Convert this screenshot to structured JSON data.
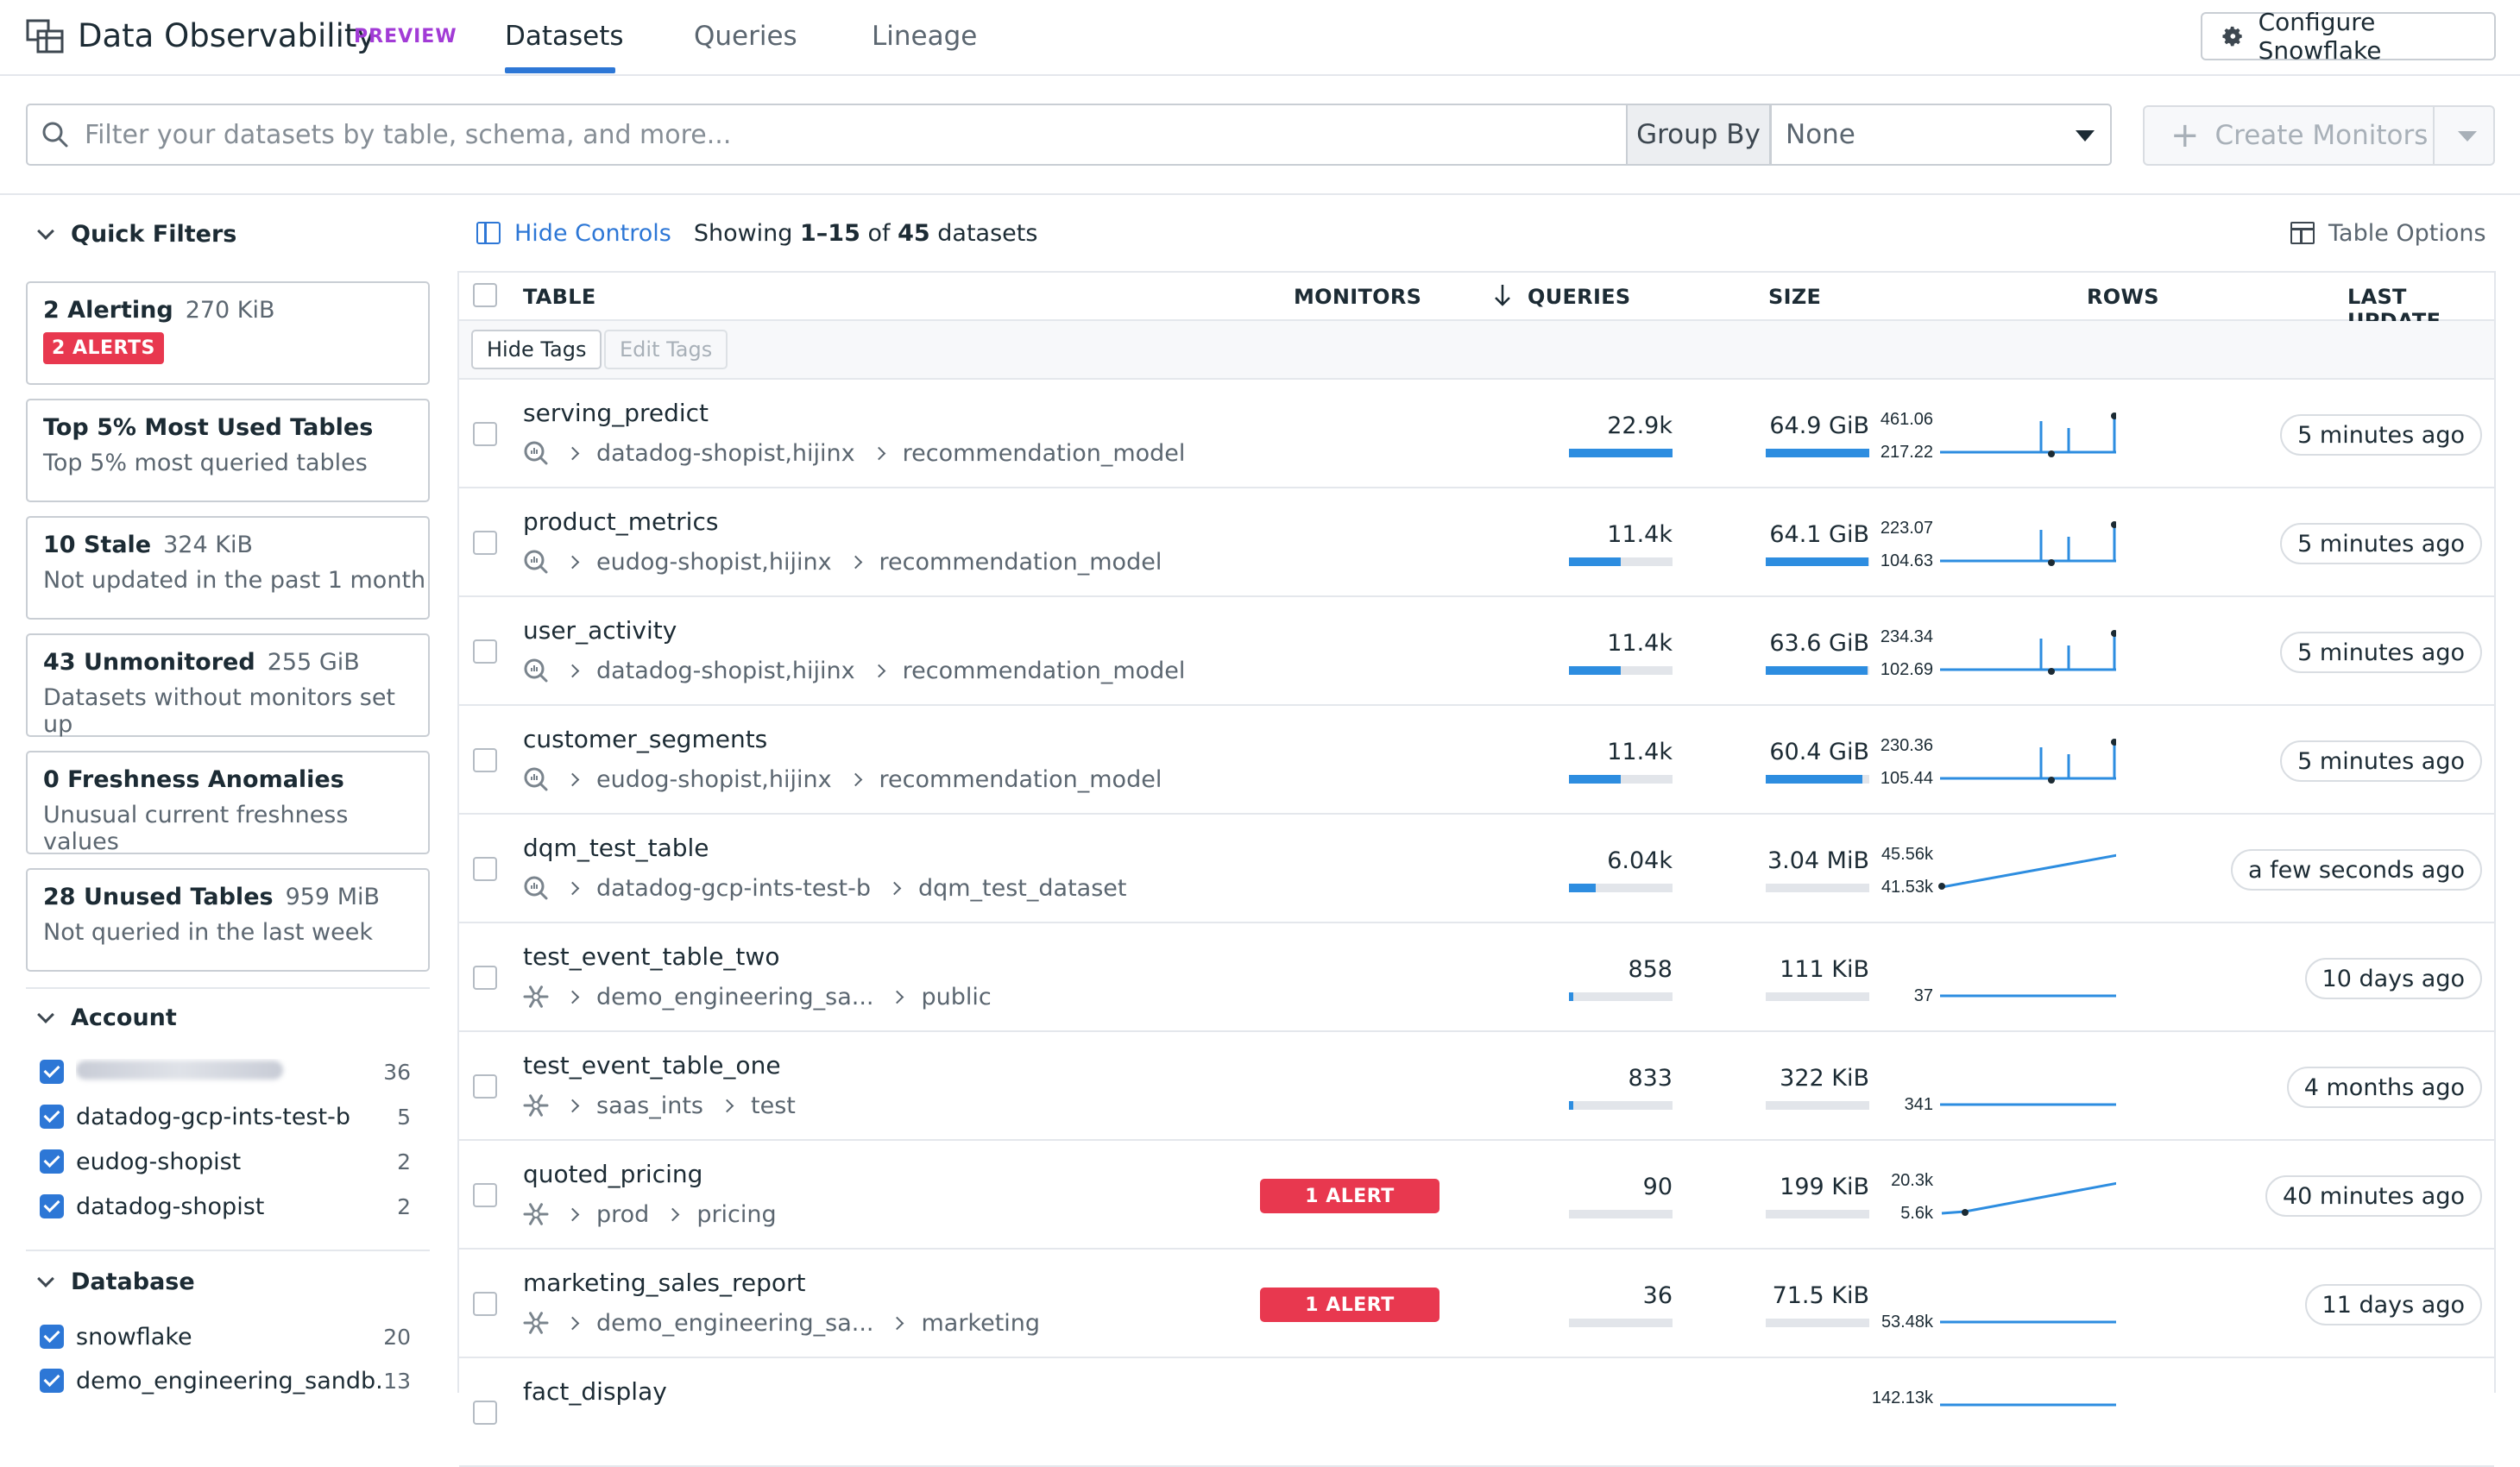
{
  "app": {
    "title": "Data Observability",
    "badge": "PREVIEW",
    "tabs": [
      {
        "label": "Datasets",
        "active": true
      },
      {
        "label": "Queries",
        "active": false
      },
      {
        "label": "Lineage",
        "active": false
      }
    ],
    "configure_label": "Configure Snowflake"
  },
  "search": {
    "placeholder": "Filter your datasets by table, schema, and more...",
    "group_by_label": "Group By",
    "group_by_value": "None",
    "create_label": "Create Monitors"
  },
  "sidebar": {
    "quick_filters_label": "Quick Filters",
    "cards": [
      {
        "title": "2 Alerting",
        "size": "270 KiB",
        "badge": "2 ALERTS",
        "subtitle": ""
      },
      {
        "title": "Top 5% Most Used Tables",
        "size": "",
        "badge": "",
        "subtitle": "Top 5% most queried tables"
      },
      {
        "title": "10 Stale",
        "size": "324 KiB",
        "badge": "",
        "subtitle": "Not updated in the past 1 month"
      },
      {
        "title": "43 Unmonitored",
        "size": "255 GiB",
        "badge": "",
        "subtitle": "Datasets without monitors set up"
      },
      {
        "title": "0 Freshness Anomalies",
        "size": "",
        "badge": "",
        "subtitle": "Unusual current freshness values"
      },
      {
        "title": "28 Unused Tables",
        "size": "959 MiB",
        "badge": "",
        "subtitle": "Not queried in the last week"
      }
    ],
    "account_label": "Account",
    "accounts": [
      {
        "name": "",
        "redacted": true,
        "count": "36"
      },
      {
        "name": "datadog-gcp-ints-test-b",
        "redacted": false,
        "count": "5"
      },
      {
        "name": "eudog-shopist",
        "redacted": false,
        "count": "2"
      },
      {
        "name": "datadog-shopist",
        "redacted": false,
        "count": "2"
      }
    ],
    "database_label": "Database",
    "databases": [
      {
        "name": "snowflake",
        "count": "20"
      },
      {
        "name": "demo_engineering_sandb...",
        "count": "13"
      }
    ]
  },
  "controls": {
    "hide_label": "Hide Controls",
    "showing_prefix": "Showing",
    "showing_range": "1–15",
    "showing_of": "of",
    "showing_total": "45",
    "showing_suffix": "datasets",
    "table_options_label": "Table Options"
  },
  "table": {
    "columns": {
      "table": "TABLE",
      "monitors": "MONITORS",
      "queries": "QUERIES",
      "size": "SIZE",
      "rows": "ROWS",
      "last_update": "LAST UPDATE"
    },
    "hide_tags_label": "Hide Tags",
    "edit_tags_label": "Edit Tags",
    "rows": [
      {
        "name": "serving_predict",
        "source": "bigquery",
        "path": [
          "datadog-shopist,hijinx",
          "recommendation_model"
        ],
        "monitor": "",
        "queries": "22.9k",
        "queries_frac": 1.0,
        "size": "64.9 GiB",
        "size_frac": 1.0,
        "rows_max": "461.06",
        "rows_min": "217.22",
        "spark": "spiky",
        "last_update": "5 minutes ago"
      },
      {
        "name": "product_metrics",
        "source": "bigquery",
        "path": [
          "eudog-shopist,hijinx",
          "recommendation_model"
        ],
        "monitor": "",
        "queries": "11.4k",
        "queries_frac": 0.5,
        "size": "64.1 GiB",
        "size_frac": 0.99,
        "rows_max": "223.07",
        "rows_min": "104.63",
        "spark": "spiky",
        "last_update": "5 minutes ago"
      },
      {
        "name": "user_activity",
        "source": "bigquery",
        "path": [
          "datadog-shopist,hijinx",
          "recommendation_model"
        ],
        "monitor": "",
        "queries": "11.4k",
        "queries_frac": 0.5,
        "size": "63.6 GiB",
        "size_frac": 0.98,
        "rows_max": "234.34",
        "rows_min": "102.69",
        "spark": "spiky",
        "last_update": "5 minutes ago"
      },
      {
        "name": "customer_segments",
        "source": "bigquery",
        "path": [
          "eudog-shopist,hijinx",
          "recommendation_model"
        ],
        "monitor": "",
        "queries": "11.4k",
        "queries_frac": 0.5,
        "size": "60.4 GiB",
        "size_frac": 0.93,
        "rows_max": "230.36",
        "rows_min": "105.44",
        "spark": "spiky",
        "last_update": "5 minutes ago"
      },
      {
        "name": "dqm_test_table",
        "source": "bigquery",
        "path": [
          "datadog-gcp-ints-test-b",
          "dqm_test_dataset"
        ],
        "monitor": "",
        "queries": "6.04k",
        "queries_frac": 0.26,
        "size": "3.04 MiB",
        "size_frac": 0.0,
        "rows_max": "45.56k",
        "rows_min": "41.53k",
        "spark": "rising",
        "last_update": "a few seconds ago"
      },
      {
        "name": "test_event_table_two",
        "source": "snowflake",
        "path": [
          "demo_engineering_sa...",
          "public"
        ],
        "monitor": "",
        "queries": "858",
        "queries_frac": 0.04,
        "size": "111 KiB",
        "size_frac": 0.0,
        "rows_max": "",
        "rows_min": "37",
        "spark": "flat",
        "last_update": "10 days ago"
      },
      {
        "name": "test_event_table_one",
        "source": "snowflake",
        "path": [
          "saas_ints",
          "test"
        ],
        "monitor": "",
        "queries": "833",
        "queries_frac": 0.04,
        "size": "322 KiB",
        "size_frac": 0.0,
        "rows_max": "",
        "rows_min": "341",
        "spark": "flat",
        "last_update": "4 months ago"
      },
      {
        "name": "quoted_pricing",
        "source": "snowflake",
        "path": [
          "prod",
          "pricing"
        ],
        "monitor": "1 ALERT",
        "queries": "90",
        "queries_frac": 0.0,
        "size": "199 KiB",
        "size_frac": 0.0,
        "rows_max": "20.3k",
        "rows_min": "5.6k",
        "spark": "rising2",
        "last_update": "40 minutes ago"
      },
      {
        "name": "marketing_sales_report",
        "source": "snowflake",
        "path": [
          "demo_engineering_sa...",
          "marketing"
        ],
        "monitor": "1 ALERT",
        "queries": "36",
        "queries_frac": 0.0,
        "size": "71.5 KiB",
        "size_frac": 0.0,
        "rows_max": "",
        "rows_min": "53.48k",
        "spark": "flat",
        "last_update": "11 days ago"
      },
      {
        "name": "fact_display",
        "source": "snowflake",
        "path": [],
        "monitor": "",
        "queries": "",
        "queries_frac": 0.0,
        "size": "",
        "size_frac": 0.0,
        "rows_max": "142.13k",
        "rows_min": "",
        "spark": "none",
        "last_update": ""
      }
    ]
  },
  "colors": {
    "accent": "#2d77d6",
    "alert": "#e8384f",
    "preview": "#a23bd6",
    "bar": "#2d8de0",
    "bar_track": "#e2e5ea"
  }
}
